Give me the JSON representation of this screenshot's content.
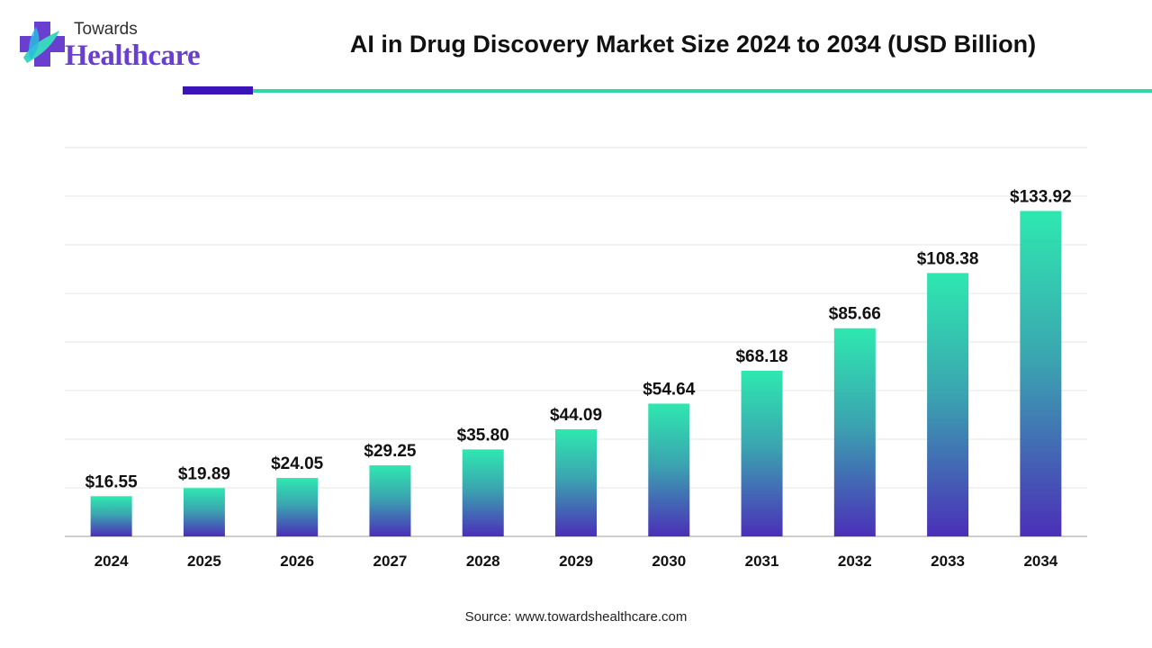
{
  "header": {
    "logo_top": "Towards",
    "logo_bottom": "Healthcare",
    "title": "AI in Drug Discovery Market Size 2024 to 2034 (USD Billion)"
  },
  "footer": {
    "source": "Source: www.towardshealthcare.com"
  },
  "colors": {
    "bar_top": "#2ee8b0",
    "bar_mid": "#3aa6b0",
    "bar_bottom": "#4b2fb8",
    "accent_purple": "#3a14b8",
    "accent_teal": "#2fd6a8",
    "logo_purple": "#6a3fd0",
    "logo_teal": "#3ad6c0"
  },
  "chart_data": {
    "type": "bar",
    "title": "AI in Drug Discovery Market Size 2024 to 2034 (USD Billion)",
    "categories": [
      "2024",
      "2025",
      "2026",
      "2027",
      "2028",
      "2029",
      "2030",
      "2031",
      "2032",
      "2033",
      "2034"
    ],
    "values": [
      16.55,
      19.89,
      24.05,
      29.25,
      35.8,
      44.09,
      54.64,
      68.18,
      85.66,
      108.38,
      133.92
    ],
    "value_labels": [
      "$16.55",
      "$19.89",
      "$24.05",
      "$29.25",
      "$35.80",
      "$44.09",
      "$54.64",
      "$68.18",
      "$85.66",
      "$108.38",
      "$133.92"
    ],
    "xlabel": "",
    "ylabel": "",
    "ylim": [
      0,
      160
    ],
    "grid": true,
    "legend": "none"
  }
}
